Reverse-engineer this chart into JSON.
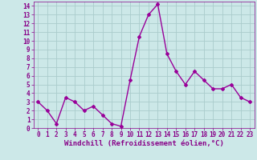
{
  "x": [
    0,
    1,
    2,
    3,
    4,
    5,
    6,
    7,
    8,
    9,
    10,
    11,
    12,
    13,
    14,
    15,
    16,
    17,
    18,
    19,
    20,
    21,
    22,
    23
  ],
  "y": [
    3.0,
    2.0,
    0.5,
    3.5,
    3.0,
    2.0,
    2.5,
    1.5,
    0.5,
    0.2,
    5.5,
    10.5,
    13.0,
    14.2,
    8.5,
    6.5,
    5.0,
    6.5,
    5.5,
    4.5,
    4.5,
    5.0,
    3.5,
    3.0
  ],
  "xlabel": "Windchill (Refroidissement éolien,°C)",
  "line_color": "#990099",
  "marker": "D",
  "markersize": 2.0,
  "linewidth": 1.0,
  "bg_color": "#cce8e8",
  "grid_color": "#aacccc",
  "xlim": [
    -0.5,
    23.5
  ],
  "ylim": [
    0,
    14.5
  ],
  "xticks": [
    0,
    1,
    2,
    3,
    4,
    5,
    6,
    7,
    8,
    9,
    10,
    11,
    12,
    13,
    14,
    15,
    16,
    17,
    18,
    19,
    20,
    21,
    22,
    23
  ],
  "yticks": [
    0,
    1,
    2,
    3,
    4,
    5,
    6,
    7,
    8,
    9,
    10,
    11,
    12,
    13,
    14
  ],
  "tick_fontsize": 5.5,
  "xlabel_fontsize": 6.5,
  "tick_color": "#880088",
  "label_color": "#880088"
}
